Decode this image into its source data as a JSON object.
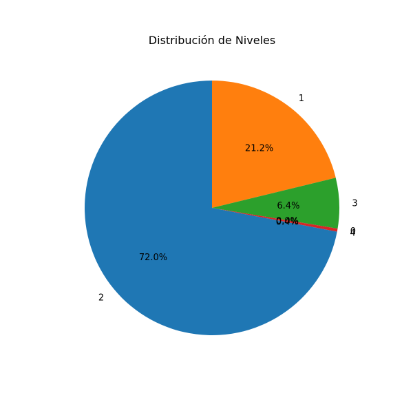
{
  "chart_data": {
    "type": "pie",
    "title": "Distribución de Niveles",
    "categories": [
      "1",
      "3",
      "0",
      "4",
      "2"
    ],
    "values": [
      21.2,
      6.4,
      0.0,
      0.4,
      72.0
    ],
    "percent_labels": [
      "21.2%",
      "6.4%",
      "0.0%",
      "0.4%",
      "72.0%"
    ],
    "colors": [
      "#ff7f0e",
      "#2ca02c",
      "#1f77b4",
      "#d62728",
      "#1f77b4"
    ],
    "start_angle_deg": 90,
    "direction": "clockwise"
  }
}
